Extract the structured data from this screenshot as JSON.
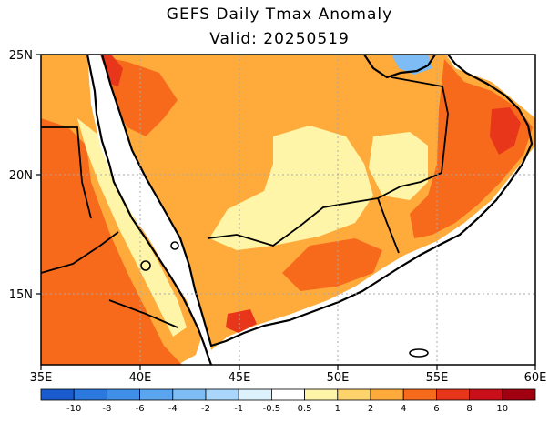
{
  "map": {
    "title": "GEFS Daily Tmax Anomaly",
    "subtitle": "Valid: 20250519"
  },
  "axes": {
    "lon_labels": [
      "35E",
      "40E",
      "45E",
      "50E",
      "55E",
      "60E"
    ],
    "lat_labels": [
      "25N",
      "20N",
      "15N"
    ],
    "lon_range": [
      35,
      60
    ],
    "lat_range": [
      12,
      25
    ],
    "grid": "dotted"
  },
  "colorbar": {
    "levels": [
      "-10",
      "-8",
      "-6",
      "-4",
      "-2",
      "-1",
      "-0.5",
      "0.5",
      "1",
      "2",
      "4",
      "6",
      "8",
      "10"
    ],
    "colors": [
      "#1a5ccf",
      "#2b78de",
      "#3f8fe8",
      "#5aa5ef",
      "#7dbcf5",
      "#a9d6fa",
      "#dcf2fd",
      "#ffffff",
      "#fff5a8",
      "#ffd36b",
      "#ffab3c",
      "#f76a1c",
      "#e8361a",
      "#c9101a",
      "#a0000f"
    ]
  },
  "palette": {
    "ocean": "#ffffff",
    "coast": "#000000",
    "cool_patch": "#dcf2fd"
  }
}
